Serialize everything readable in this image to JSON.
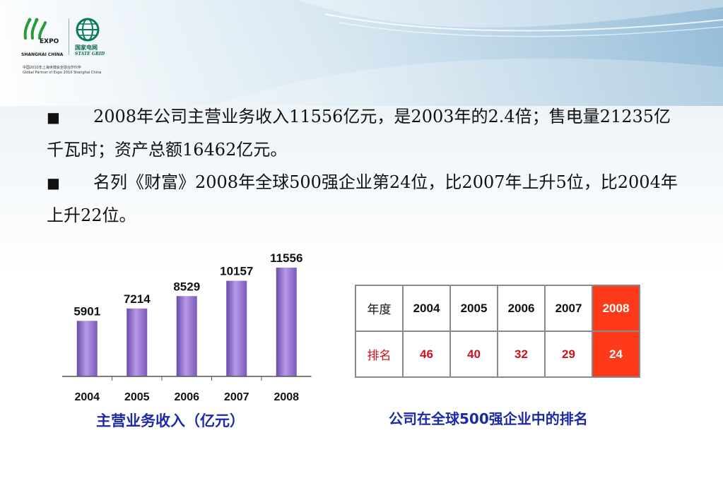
{
  "logo": {
    "expo_word": "EXPO",
    "expo_sub": "SHANGHAI CHINA",
    "grid_cn": "国家电网",
    "grid_en": "STATE GRID",
    "caption_cn": "中国2010年上海世博会全球合作伙伴",
    "caption_en": "Global Partner of Expo 2010 Shanghai China"
  },
  "bullets": [
    {
      "text": "2008年公司主营业务收入11556亿元，是2003年的2.4倍；售电量21235亿千瓦时；资产总额16462亿元。"
    },
    {
      "text": "名列《财富》2008年全球500强企业第24位，比2007年上升5位，比2004年上升22位。"
    }
  ],
  "bullet_mark": "■",
  "chart_data": [
    {
      "type": "bar",
      "categories": [
        "2004",
        "2005",
        "2006",
        "2007",
        "2008"
      ],
      "values": [
        5901,
        7214,
        8529,
        10157,
        11556
      ],
      "value_labels": [
        "5901",
        "7214",
        "8529",
        "10157",
        "11556"
      ],
      "title": "主营业务收入（亿元）",
      "ylim": [
        0,
        12000
      ],
      "grid": false,
      "bar_color": "#8e68c8"
    },
    {
      "type": "table",
      "title": "公司在全球500强企业中的排名",
      "header_label": "年度",
      "row_label": "排名",
      "years": [
        "2004",
        "2005",
        "2006",
        "2007",
        "2008"
      ],
      "ranks": [
        "46",
        "40",
        "32",
        "29",
        "24"
      ],
      "highlight_color": "#ff3a1a",
      "rank_color": "#d0101a"
    }
  ]
}
